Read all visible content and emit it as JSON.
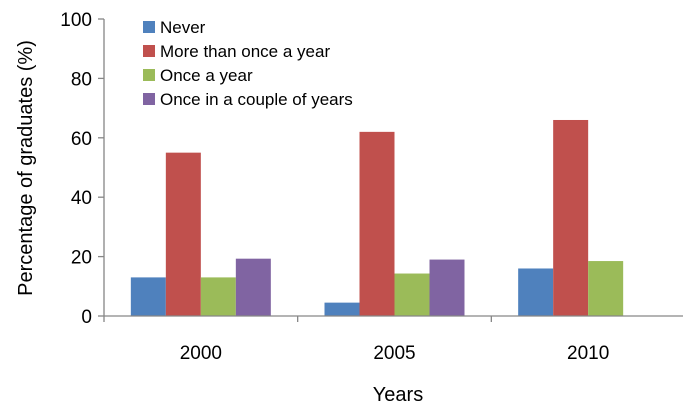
{
  "chart_data": {
    "type": "bar",
    "categories": [
      "2000",
      "2005",
      "2010"
    ],
    "series": [
      {
        "name": "Never",
        "color": "#4F81BD",
        "values": [
          13,
          4.5,
          16
        ]
      },
      {
        "name": "More than once a year",
        "color": "#C0504D",
        "values": [
          55,
          62,
          66
        ]
      },
      {
        "name": "Once a year",
        "color": "#9BBB59",
        "values": [
          13,
          14.3,
          18.5
        ]
      },
      {
        "name": "Once in a couple of years",
        "color": "#8064A2",
        "values": [
          19.3,
          19,
          null
        ]
      }
    ],
    "title": "",
    "xlabel": "Years",
    "ylabel": "Percentage of graduates (%)",
    "ylim": [
      0,
      100
    ],
    "yticks": [
      "0",
      "20",
      "40",
      "60",
      "80",
      "100"
    ],
    "grid": false,
    "legend_position": "top-left"
  }
}
